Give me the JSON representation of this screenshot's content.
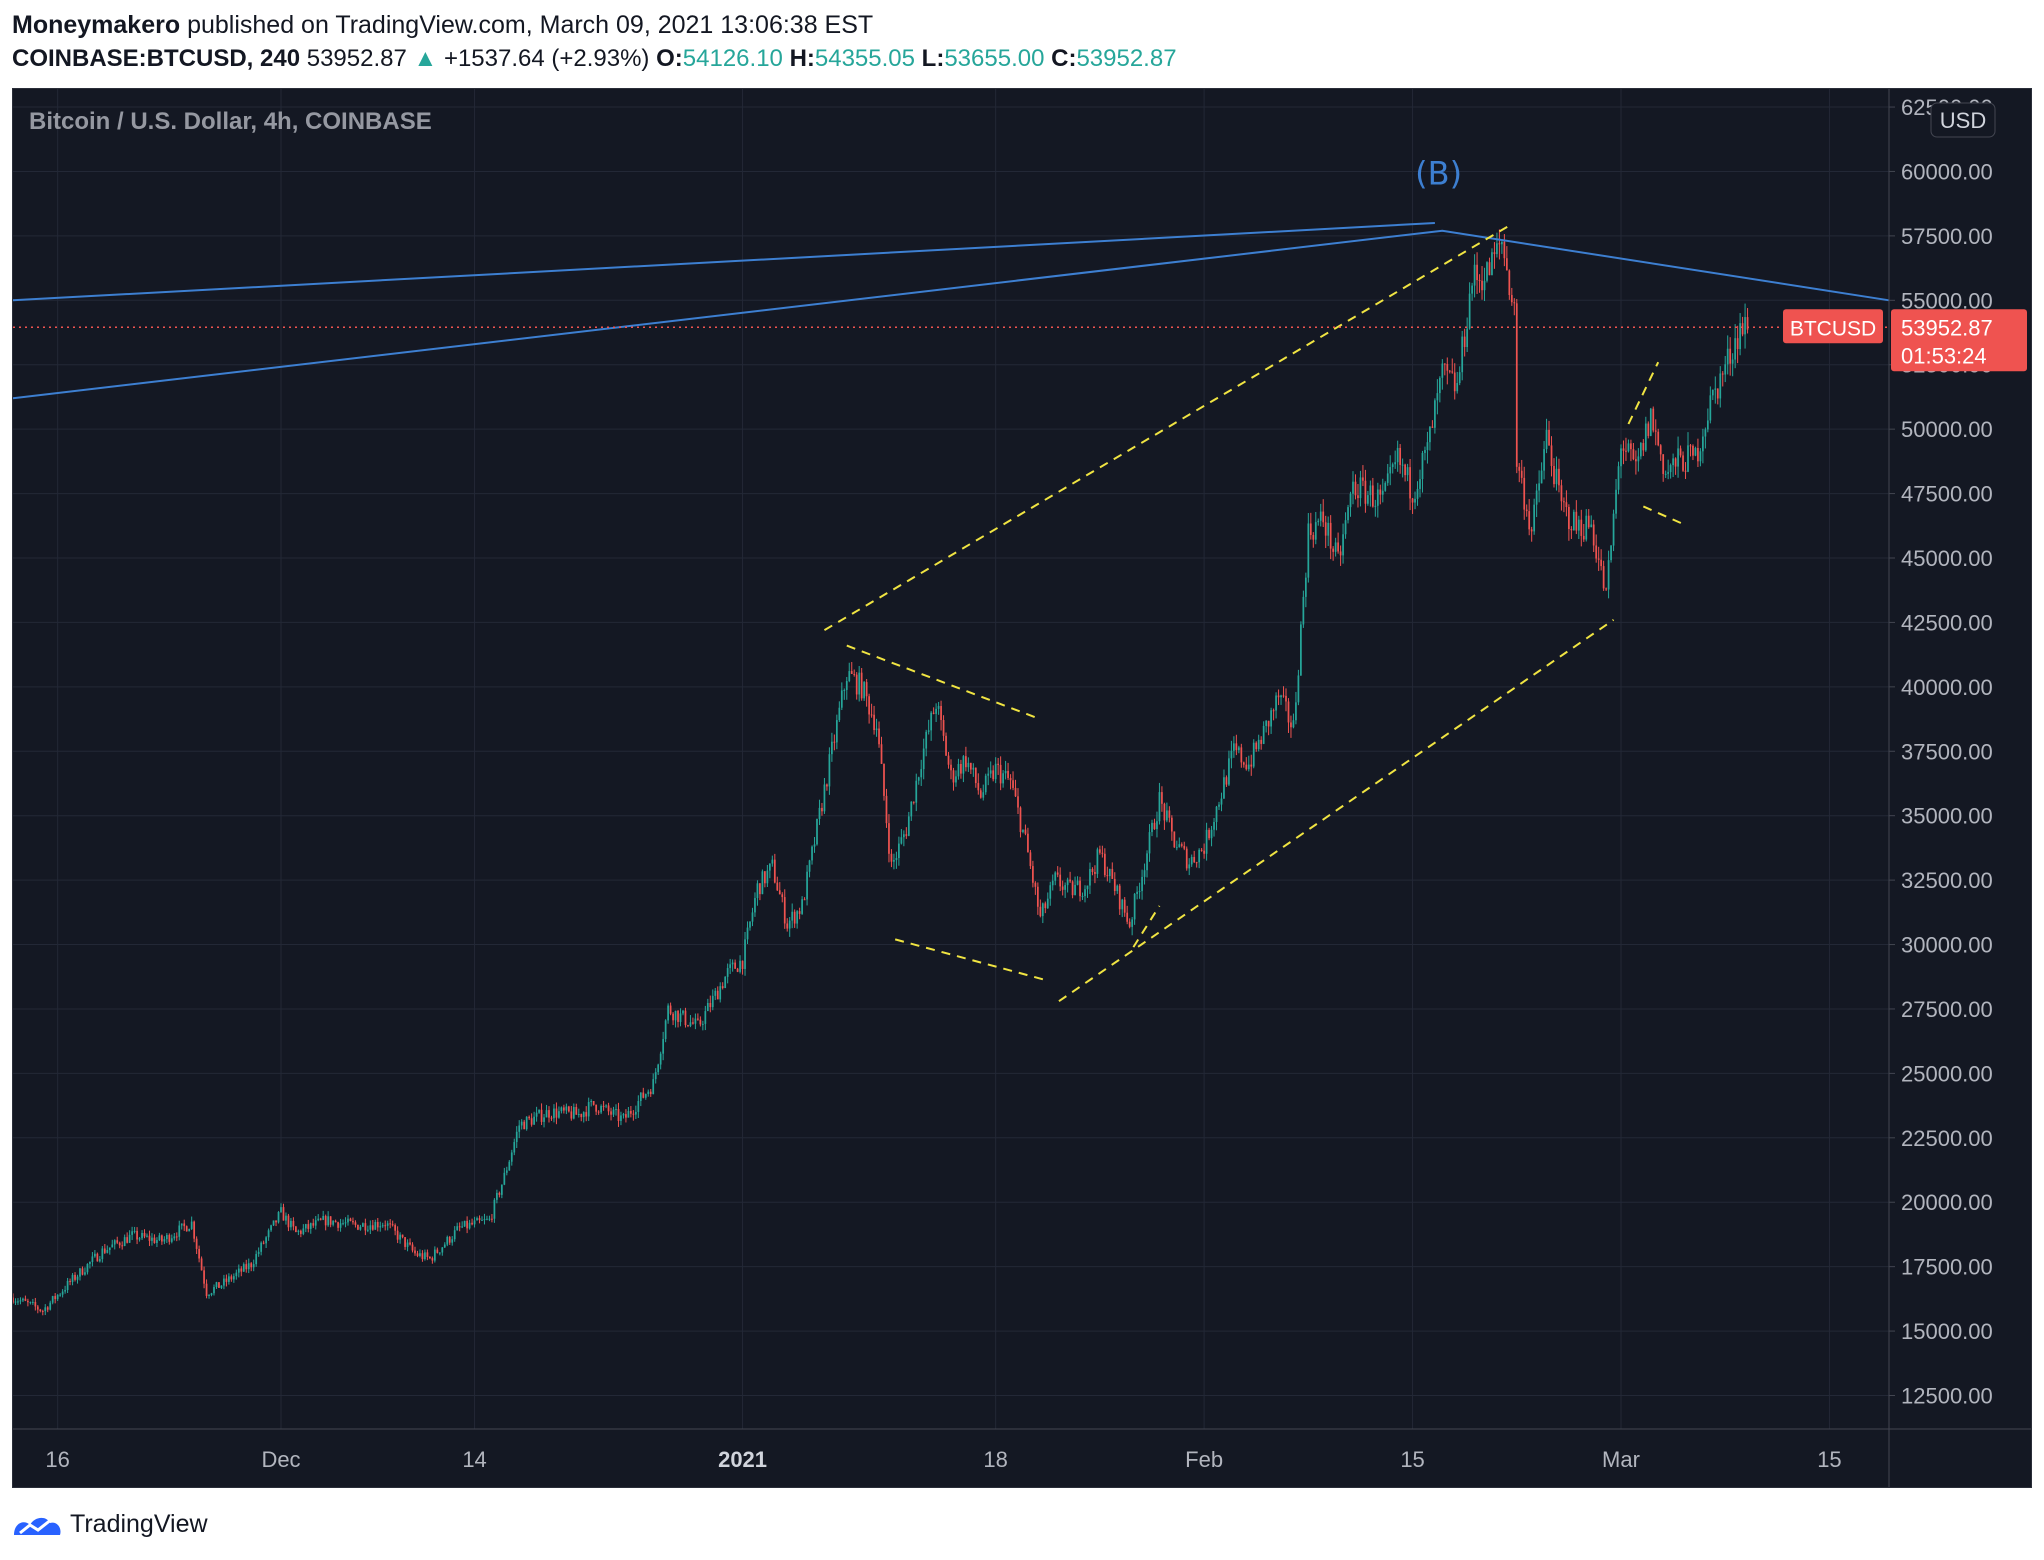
{
  "header": {
    "author": "Moneymakero",
    "published_text": "published on TradingView.com, March 09, 2021 13:06:38 EST",
    "symbol": "COINBASE:BTCUSD, 240",
    "last_price": "53952.87",
    "change_arrow": "▲",
    "change": "+1537.64 (+2.93%)",
    "o_label": "O:",
    "o_value": "54126.10",
    "h_label": "H:",
    "h_value": "54355.05",
    "l_label": "L:",
    "l_value": "53655.00",
    "c_label": "C:",
    "c_value": "53952.87",
    "up_color": "#26a69a"
  },
  "footer": {
    "brand": "TradingView",
    "logo_icon": "tradingview-logo-icon"
  },
  "chart_data": {
    "type": "candlestick",
    "title": "Bitcoin / U.S. Dollar, 4h, COINBASE",
    "currency_label": "USD",
    "y_ticks": [
      "12500.00",
      "15000.00",
      "17500.00",
      "20000.00",
      "22500.00",
      "25000.00",
      "27500.00",
      "30000.00",
      "32500.00",
      "35000.00",
      "37500.00",
      "40000.00",
      "42500.00",
      "45000.00",
      "47500.00",
      "50000.00",
      "52500.00",
      "55000.00",
      "57500.00",
      "60000.00",
      "62500.00"
    ],
    "x_ticks": [
      {
        "label": "16",
        "date": "2020-11-16",
        "bold": false
      },
      {
        "label": "Dec",
        "date": "2020-12-01",
        "bold": false
      },
      {
        "label": "14",
        "date": "2020-12-14",
        "bold": false
      },
      {
        "label": "2021",
        "date": "2021-01-01",
        "bold": true
      },
      {
        "label": "18",
        "date": "2021-01-18",
        "bold": false
      },
      {
        "label": "Feb",
        "date": "2021-02-01",
        "bold": false
      },
      {
        "label": "15",
        "date": "2021-02-15",
        "bold": false
      },
      {
        "label": "Mar",
        "date": "2021-03-01",
        "bold": false
      },
      {
        "label": "15",
        "date": "2021-03-15",
        "bold": false
      }
    ],
    "x_range": [
      "2020-11-13",
      "2021-03-19"
    ],
    "y_range": [
      11200,
      63200
    ],
    "grid": true,
    "up_color": "#26a69a",
    "down_color": "#ef5350",
    "price_keypoints": [
      [
        "2020-11-13",
        16300
      ],
      [
        "2020-11-15",
        15800
      ],
      [
        "2020-11-17",
        17000
      ],
      [
        "2020-11-19",
        18100
      ],
      [
        "2020-11-21",
        18700
      ],
      [
        "2020-11-23",
        18500
      ],
      [
        "2020-11-25",
        19200
      ],
      [
        "2020-11-26",
        16500
      ],
      [
        "2020-11-27",
        16800
      ],
      [
        "2020-11-29",
        17600
      ],
      [
        "2020-11-30",
        18600
      ],
      [
        "2020-12-01",
        19600
      ],
      [
        "2020-12-02",
        18800
      ],
      [
        "2020-12-04",
        19300
      ],
      [
        "2020-12-06",
        19100
      ],
      [
        "2020-12-08",
        19200
      ],
      [
        "2020-12-10",
        18000
      ],
      [
        "2020-12-11",
        17800
      ],
      [
        "2020-12-13",
        19000
      ],
      [
        "2020-12-15",
        19300
      ],
      [
        "2020-12-16",
        21000
      ],
      [
        "2020-12-17",
        23000
      ],
      [
        "2020-12-19",
        23500
      ],
      [
        "2020-12-21",
        23400
      ],
      [
        "2020-12-22",
        23800
      ],
      [
        "2020-12-24",
        23200
      ],
      [
        "2020-12-26",
        24600
      ],
      [
        "2020-12-27",
        27500
      ],
      [
        "2020-12-29",
        26800
      ],
      [
        "2020-12-31",
        28900
      ],
      [
        "2021-01-01",
        29400
      ],
      [
        "2021-01-02",
        32200
      ],
      [
        "2021-01-03",
        33000
      ],
      [
        "2021-01-04",
        30800
      ],
      [
        "2021-01-05",
        31500
      ],
      [
        "2021-01-06",
        34500
      ],
      [
        "2021-01-07",
        37500
      ],
      [
        "2021-01-08",
        40500
      ],
      [
        "2021-01-09",
        40000
      ],
      [
        "2021-01-10",
        38500
      ],
      [
        "2021-01-11",
        33000
      ],
      [
        "2021-01-12",
        34500
      ],
      [
        "2021-01-13",
        37200
      ],
      [
        "2021-01-14",
        39400
      ],
      [
        "2021-01-15",
        36500
      ],
      [
        "2021-01-16",
        37200
      ],
      [
        "2021-01-17",
        35800
      ],
      [
        "2021-01-18",
        36800
      ],
      [
        "2021-01-19",
        36300
      ],
      [
        "2021-01-20",
        34000
      ],
      [
        "2021-01-21",
        31000
      ],
      [
        "2021-01-22",
        32500
      ],
      [
        "2021-01-23",
        32100
      ],
      [
        "2021-01-24",
        32300
      ],
      [
        "2021-01-25",
        33500
      ],
      [
        "2021-01-26",
        32200
      ],
      [
        "2021-01-27",
        30800
      ],
      [
        "2021-01-28",
        33200
      ],
      [
        "2021-01-29",
        35600
      ],
      [
        "2021-01-30",
        34000
      ],
      [
        "2021-01-31",
        33200
      ],
      [
        "2021-02-01",
        33800
      ],
      [
        "2021-02-02",
        35600
      ],
      [
        "2021-02-03",
        37500
      ],
      [
        "2021-02-04",
        37000
      ],
      [
        "2021-02-05",
        38200
      ],
      [
        "2021-02-06",
        39600
      ],
      [
        "2021-02-07",
        38400
      ],
      [
        "2021-02-08",
        46000
      ],
      [
        "2021-02-09",
        46500
      ],
      [
        "2021-02-10",
        44800
      ],
      [
        "2021-02-11",
        47800
      ],
      [
        "2021-02-12",
        47500
      ],
      [
        "2021-02-13",
        47200
      ],
      [
        "2021-02-14",
        48800
      ],
      [
        "2021-02-15",
        47600
      ],
      [
        "2021-02-16",
        49200
      ],
      [
        "2021-02-17",
        52100
      ],
      [
        "2021-02-18",
        51600
      ],
      [
        "2021-02-19",
        55800
      ],
      [
        "2021-02-20",
        56000
      ],
      [
        "2021-02-21",
        57300
      ],
      [
        "2021-02-22",
        54000
      ],
      [
        "2021-02-22",
        48800
      ],
      [
        "2021-02-23",
        46000
      ],
      [
        "2021-02-24",
        49700
      ],
      [
        "2021-02-25",
        47000
      ],
      [
        "2021-02-26",
        46200
      ],
      [
        "2021-02-27",
        46300
      ],
      [
        "2021-02-28",
        43500
      ],
      [
        "2021-03-01",
        49500
      ],
      [
        "2021-03-02",
        48400
      ],
      [
        "2021-03-03",
        50500
      ],
      [
        "2021-03-04",
        48300
      ],
      [
        "2021-03-05",
        48800
      ],
      [
        "2021-03-06",
        48900
      ],
      [
        "2021-03-07",
        51000
      ],
      [
        "2021-03-08",
        52400
      ],
      [
        "2021-03-09",
        53950
      ]
    ],
    "last_price_label": {
      "symbol": "BTCUSD",
      "price": "53952.87",
      "countdown": "01:53:24",
      "value": 53952.87,
      "color": "#ef5350"
    },
    "annotations": {
      "wave_label": {
        "text": "(B)",
        "date": "2021-02-16 18:00",
        "price": 59500,
        "color": "#3d7fd1"
      },
      "blue_lines": [
        {
          "points": [
            [
              "2020-11-13",
              55000
            ],
            [
              "2021-02-16 12:00",
              58000
            ]
          ]
        },
        {
          "points": [
            [
              "2020-11-13",
              51200
            ],
            [
              "2021-02-17",
              57700
            ],
            [
              "2021-03-19",
              55000
            ]
          ]
        }
      ],
      "yellow_dashed": [
        {
          "points": [
            [
              "2021-01-06 12:00",
              42200
            ],
            [
              "2021-02-21 12:00",
              57900
            ]
          ]
        },
        {
          "points": [
            [
              "2021-01-22 06:00",
              27800
            ],
            [
              "2021-02-28 12:00",
              42600
            ]
          ]
        },
        {
          "points": [
            [
              "2021-01-08",
              41600
            ],
            [
              "2021-01-20 18:00",
              38800
            ]
          ]
        },
        {
          "points": [
            [
              "2021-01-11 06:00",
              30200
            ],
            [
              "2021-01-21 12:00",
              28600
            ]
          ]
        },
        {
          "points": [
            [
              "2021-01-27 06:00",
              29900
            ],
            [
              "2021-01-29",
              31500
            ]
          ]
        },
        {
          "points": [
            [
              "2021-03-01 12:00",
              50200
            ],
            [
              "2021-03-03 12:00",
              52600
            ]
          ]
        },
        {
          "points": [
            [
              "2021-03-02 12:00",
              47000
            ],
            [
              "2021-03-05 06:00",
              46300
            ]
          ]
        }
      ],
      "color_yellow": "#f0e442",
      "color_blue": "#3d7fd1"
    }
  }
}
